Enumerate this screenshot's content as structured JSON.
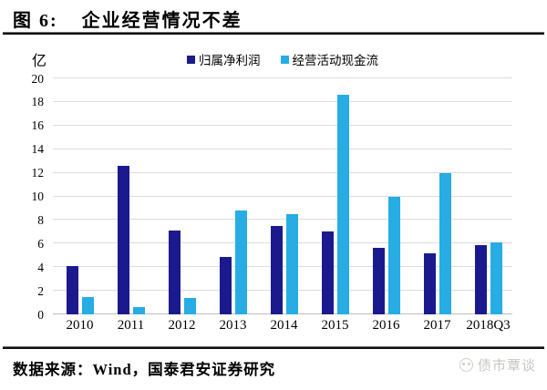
{
  "header": {
    "figure_label": "图 6:",
    "title": "企业经营情况不差"
  },
  "chart_data": {
    "type": "bar",
    "title": "企业经营情况不差",
    "unit": "亿",
    "categories": [
      "2010",
      "2011",
      "2012",
      "2013",
      "2014",
      "2015",
      "2016",
      "2017",
      "2018Q3"
    ],
    "series": [
      {
        "name": "归属净利润",
        "color": "#1A1A8E",
        "values": [
          4.1,
          12.6,
          7.1,
          4.9,
          7.5,
          7.0,
          5.6,
          5.2,
          5.9
        ]
      },
      {
        "name": "经营活动现金流",
        "color": "#27ACE4",
        "values": [
          1.5,
          0.6,
          1.4,
          8.8,
          8.5,
          18.6,
          10.0,
          12.0,
          6.1
        ]
      }
    ],
    "ylim": [
      0,
      20
    ],
    "yticks": [
      0,
      2,
      4,
      6,
      8,
      10,
      12,
      14,
      16,
      18,
      20
    ],
    "grid": true,
    "legend_position": "top-center"
  },
  "legend": {
    "items": [
      {
        "label": "归属净利润",
        "color": "#1A1A8E"
      },
      {
        "label": "经营活动现金流",
        "color": "#27ACE4"
      }
    ]
  },
  "footer": {
    "source": "数据来源：Wind，国泰君安证券研究",
    "watermark": "债市覃谈",
    "watermark_color": "#c7c7c1"
  }
}
